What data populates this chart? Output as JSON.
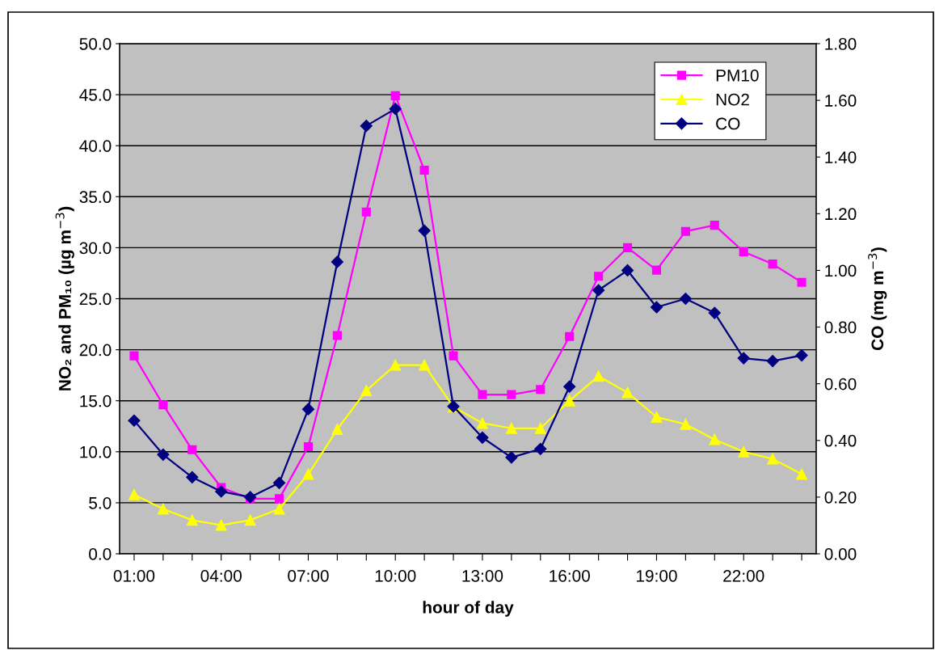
{
  "chart_data": {
    "type": "line",
    "xlabel": "hour of day",
    "ylabel": "NO₂ and PM₁₀ (µg m$^{−3}$)",
    "y2label": "CO (mg m$^{−3}$)",
    "categories": [
      "01:00",
      null,
      null,
      "04:00",
      null,
      null,
      "07:00",
      null,
      null,
      "10:00",
      null,
      null,
      "13:00",
      null,
      null,
      "16:00",
      null,
      null,
      "19:00",
      null,
      null,
      "22:00",
      null,
      null
    ],
    "series": [
      {
        "name": "PM10",
        "color": "#ff00ff",
        "marker": "square",
        "values": [
          19.4,
          14.6,
          10.2,
          6.5,
          5.4,
          5.4,
          10.5,
          21.4,
          33.5,
          44.9,
          37.6,
          19.4,
          15.6,
          15.6,
          16.1,
          21.3,
          27.2,
          30.0,
          27.8,
          31.6,
          32.2,
          29.6,
          28.4,
          26.6
        ]
      },
      {
        "name": "NO2",
        "color": "#ffff00",
        "marker": "triangle",
        "values": [
          5.8,
          4.4,
          3.3,
          2.8,
          3.3,
          4.4,
          7.8,
          12.2,
          16.0,
          18.5,
          18.5,
          14.4,
          12.8,
          12.3,
          12.3,
          15.0,
          17.4,
          15.8,
          13.4,
          12.7,
          11.2,
          10.0,
          9.3,
          7.8
        ]
      },
      {
        "name": "CO",
        "color": "#000080",
        "marker": "diamond",
        "axis": "y2",
        "values": [
          0.47,
          0.35,
          0.27,
          0.22,
          0.2,
          0.25,
          0.51,
          1.03,
          1.51,
          1.57,
          1.14,
          0.52,
          0.41,
          0.34,
          0.37,
          0.59,
          0.93,
          1.0,
          0.87,
          0.9,
          0.85,
          0.69,
          0.68,
          0.7
        ]
      }
    ],
    "ylim": [
      0,
      50
    ],
    "yticks": [
      {
        "value": 0,
        "label": "0.0"
      },
      {
        "value": 5,
        "label": "5.0"
      },
      {
        "value": 10,
        "label": "10.0"
      },
      {
        "value": 15,
        "label": "15.0"
      },
      {
        "value": 20,
        "label": "20.0"
      },
      {
        "value": 25,
        "label": "25.0"
      },
      {
        "value": 30,
        "label": "30.0"
      },
      {
        "value": 35,
        "label": "35.0"
      },
      {
        "value": 40,
        "label": "40.0"
      },
      {
        "value": 45,
        "label": "45.0"
      },
      {
        "value": 50,
        "label": "50.0"
      }
    ],
    "y2lim": [
      0,
      1.8
    ],
    "y2ticks": [
      {
        "value": 0,
        "label": "0.00"
      },
      {
        "value": 0.2,
        "label": "0.20"
      },
      {
        "value": 0.4,
        "label": "0.40"
      },
      {
        "value": 0.6,
        "label": "0.60"
      },
      {
        "value": 0.8,
        "label": "0.80"
      },
      {
        "value": 1.0,
        "label": "1.00"
      },
      {
        "value": 1.2,
        "label": "1.20"
      },
      {
        "value": 1.4,
        "label": "1.40"
      },
      {
        "value": 1.6,
        "label": "1.60"
      },
      {
        "value": 1.8,
        "label": "1.80"
      }
    ],
    "grid": "y",
    "legend": "top right",
    "line_style": "solid"
  }
}
